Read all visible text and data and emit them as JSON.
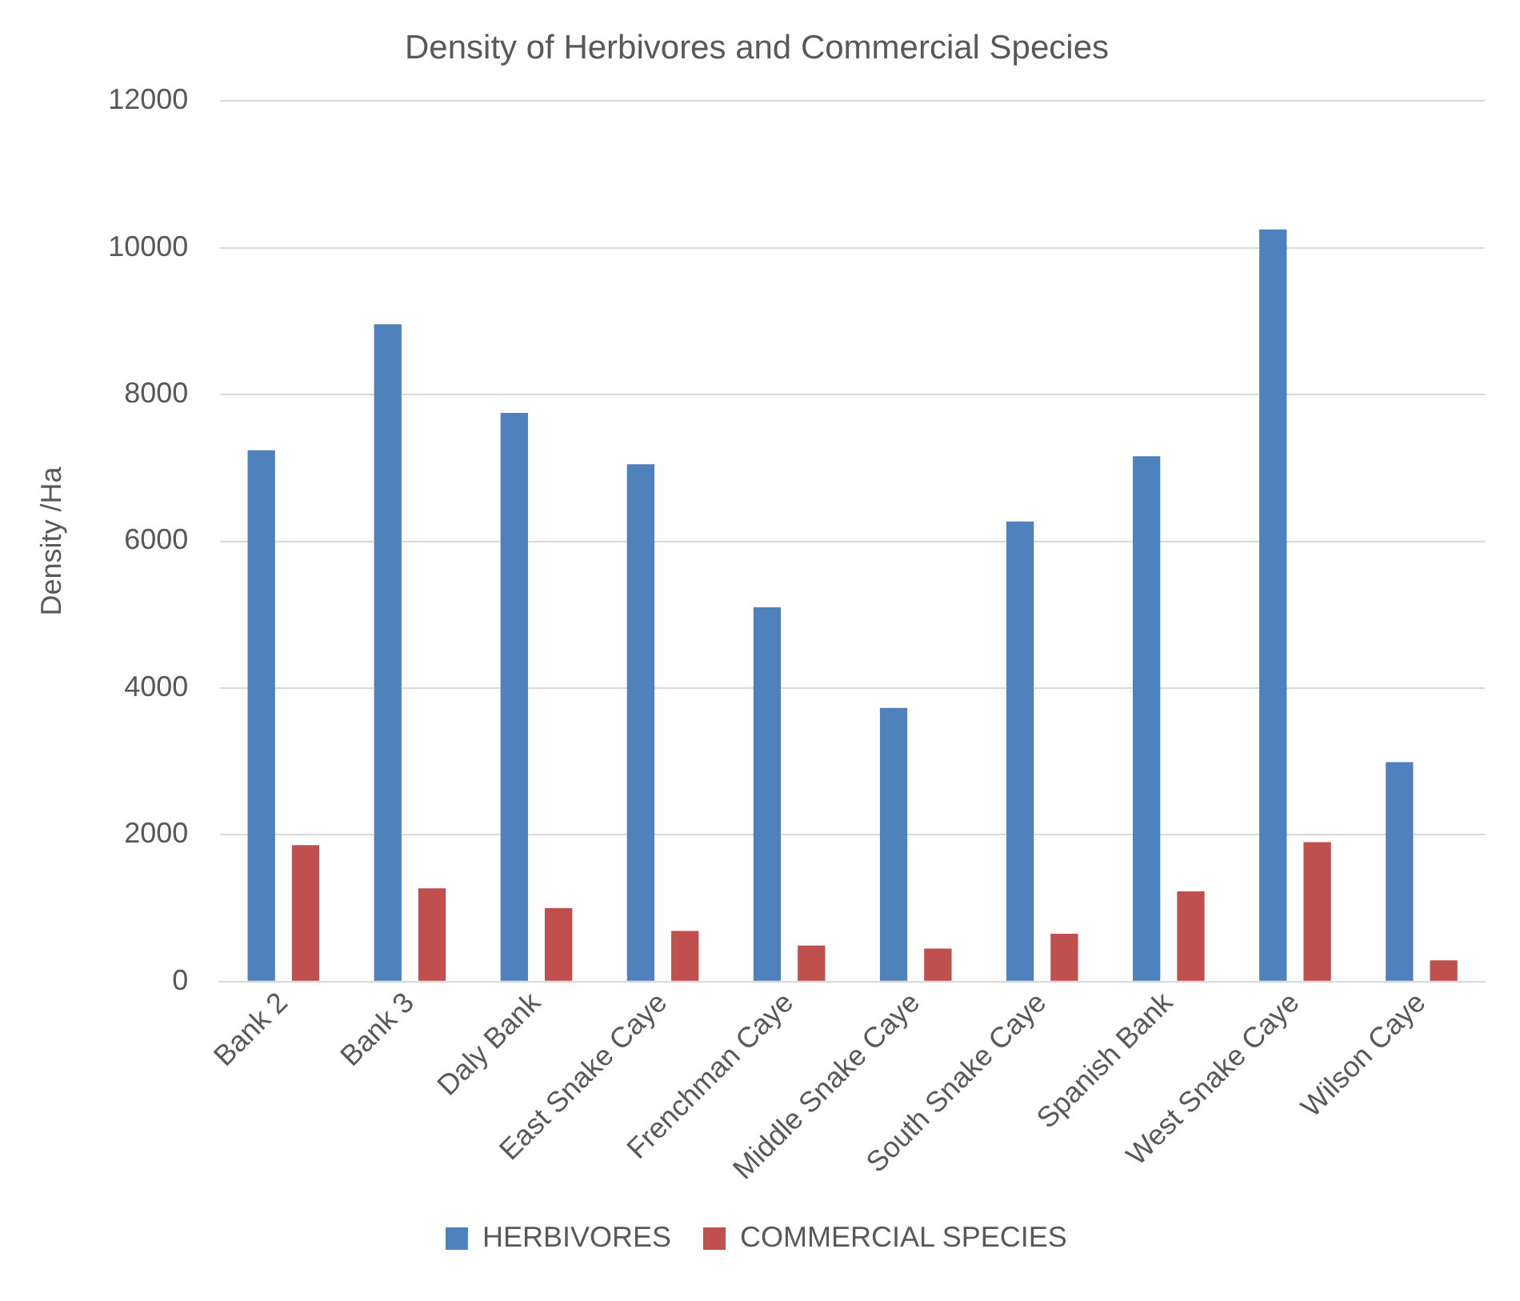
{
  "chart_data": {
    "type": "bar",
    "title": "Density of Herbivores and Commercial Species",
    "ylabel": "Density /Ha",
    "categories": [
      "Bank 2",
      "Bank 3",
      "Daly Bank",
      "East Snake Caye",
      "Frenchman Caye",
      "Middle Snake Caye",
      "South Snake Caye",
      "Spanish Bank",
      "West Snake Caye",
      "Wilson Caye"
    ],
    "series": [
      {
        "name": "HERBIVORES",
        "color": "#4f81bd",
        "values": [
          7240,
          8960,
          7750,
          7050,
          5100,
          3730,
          6270,
          7160,
          10250,
          2990
        ]
      },
      {
        "name": "COMMERCIAL SPECIES",
        "color": "#c0504d",
        "values": [
          1860,
          1270,
          1000,
          690,
          490,
          450,
          650,
          1230,
          1900,
          290
        ]
      }
    ],
    "ylim": [
      0,
      12000
    ],
    "yticks": [
      0,
      2000,
      4000,
      6000,
      8000,
      10000,
      12000
    ],
    "grid": "y",
    "legend": "bottom"
  }
}
